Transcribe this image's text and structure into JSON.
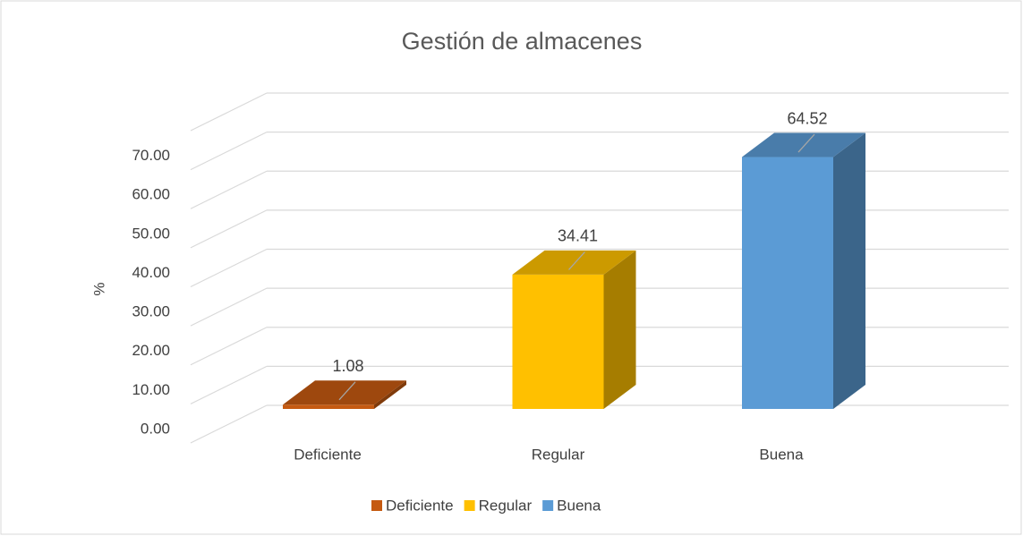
{
  "chart_data": {
    "type": "bar3d",
    "title": "Gestión de almacenes",
    "y_label": "%",
    "categories": [
      "Deficiente",
      "Regular",
      "Buena"
    ],
    "values": [
      1.08,
      34.41,
      64.52
    ],
    "colors": [
      "#c55a11",
      "#ffc000",
      "#5b9bd5"
    ],
    "ylim": [
      0,
      80
    ],
    "yticks": [
      {
        "value": 0,
        "label": "0.00"
      },
      {
        "value": 10,
        "label": "10.00"
      },
      {
        "value": 20,
        "label": "20.00"
      },
      {
        "value": 30,
        "label": "30.00"
      },
      {
        "value": 40,
        "label": "40.00"
      },
      {
        "value": 50,
        "label": "50.00"
      },
      {
        "value": 60,
        "label": "60.00"
      },
      {
        "value": 70,
        "label": "70.00"
      }
    ],
    "grid": true,
    "legend": "bottom"
  }
}
